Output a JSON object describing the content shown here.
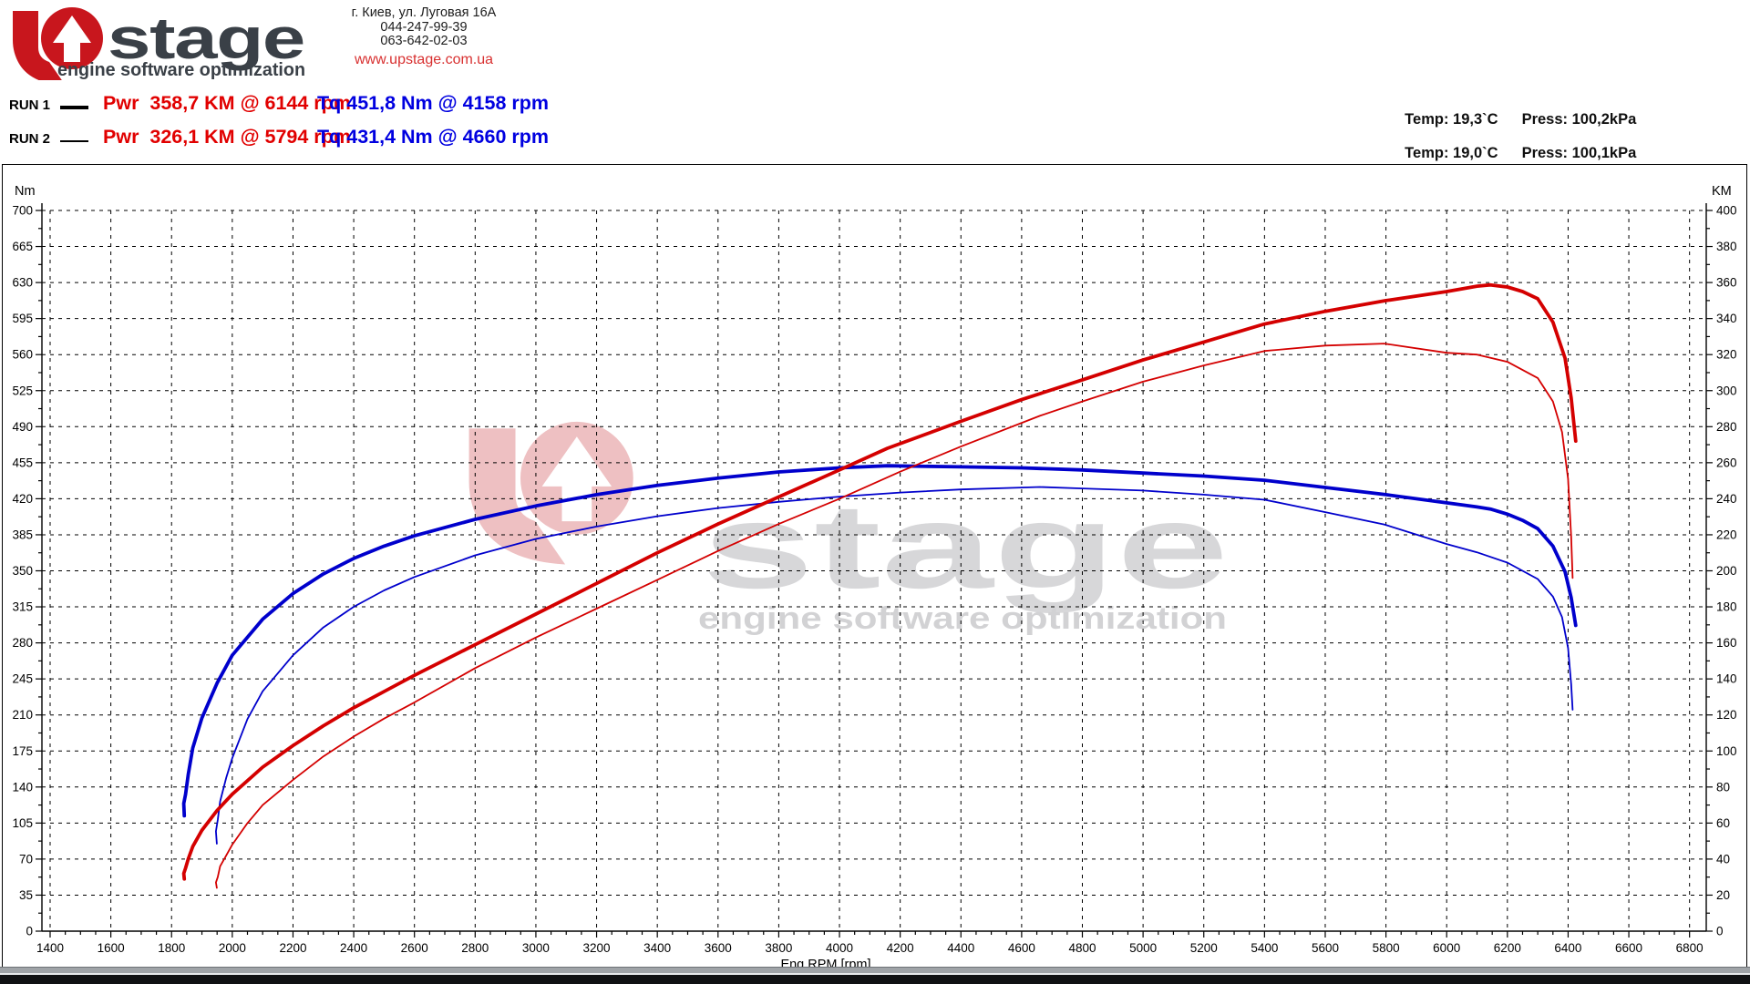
{
  "header": {
    "logo": {
      "brand_rest": "stage",
      "tagline": "engine software optimization",
      "red": "#c8161d",
      "dark": "#3a4047"
    },
    "address_lines": [
      "г. Киев, ул. Луговая 16А",
      "044-247-99-39",
      "063-642-02-03"
    ],
    "website": "www.upstage.com.ua",
    "runs": [
      {
        "label": "RUN 1",
        "power": "Pwr  358,7 KM @ 6144 rpm",
        "torque": "Tq 451,8 Nm @ 4158 rpm",
        "temp": "Temp: 19,3`C",
        "press": "Press: 100,2kPa"
      },
      {
        "label": "RUN 2",
        "power": "Pwr  326,1 KM @ 5794 rpm",
        "torque": "Tq 431,4 Nm @ 4660 rpm",
        "temp": "Temp: 19,0`C",
        "press": "Press: 100,1kPa"
      }
    ]
  },
  "chart_data": {
    "type": "line",
    "grid": "dashed",
    "x_axis": {
      "label": "Eng RPM [rpm]",
      "min": 1400,
      "max": 6800,
      "major_step": 200,
      "minor_step": 50
    },
    "y_left": {
      "label": "Nm",
      "min": 0,
      "max": 700,
      "major_step": 35
    },
    "y_right": {
      "label": "KM",
      "min": 0,
      "max": 400,
      "major_step": 20
    },
    "watermark": {
      "text": "stage",
      "tagline": "engine software optimization",
      "mark_color": "#eec0c2",
      "text_color": "#d7d7d9",
      "tagline_color": "#d2d2d4"
    },
    "series": [
      {
        "name": "RUN 1 Torque (Nm)",
        "axis": "left",
        "color": "#0000cc",
        "width": 3.8,
        "peak": "451,8 Nm @ 4158 rpm",
        "points": [
          [
            1842,
            112
          ],
          [
            1840,
            124
          ],
          [
            1846,
            133
          ],
          [
            1855,
            152
          ],
          [
            1870,
            178
          ],
          [
            1900,
            207
          ],
          [
            1950,
            241
          ],
          [
            2000,
            268
          ],
          [
            2100,
            303
          ],
          [
            2200,
            328
          ],
          [
            2300,
            347
          ],
          [
            2400,
            362
          ],
          [
            2500,
            374
          ],
          [
            2600,
            384
          ],
          [
            2800,
            400
          ],
          [
            3000,
            413
          ],
          [
            3200,
            424
          ],
          [
            3400,
            433
          ],
          [
            3600,
            440
          ],
          [
            3800,
            446
          ],
          [
            4000,
            450
          ],
          [
            4158,
            452
          ],
          [
            4400,
            451
          ],
          [
            4600,
            450
          ],
          [
            4800,
            448
          ],
          [
            5000,
            445
          ],
          [
            5200,
            442
          ],
          [
            5400,
            438
          ],
          [
            5600,
            431
          ],
          [
            5800,
            424
          ],
          [
            6000,
            416
          ],
          [
            6100,
            412
          ],
          [
            6144,
            410
          ],
          [
            6200,
            405
          ],
          [
            6250,
            399
          ],
          [
            6300,
            391
          ],
          [
            6350,
            374
          ],
          [
            6390,
            349
          ],
          [
            6410,
            324
          ],
          [
            6425,
            297
          ]
        ]
      },
      {
        "name": "RUN 2 Torque (Nm)",
        "axis": "left",
        "color": "#0000cc",
        "width": 1.8,
        "peak": "431,4 Nm @ 4660 rpm",
        "points": [
          [
            1949,
            85
          ],
          [
            1946,
            97
          ],
          [
            1952,
            108
          ],
          [
            1960,
            126
          ],
          [
            1980,
            149
          ],
          [
            2000,
            168
          ],
          [
            2050,
            206
          ],
          [
            2100,
            233
          ],
          [
            2200,
            268
          ],
          [
            2300,
            295
          ],
          [
            2400,
            315
          ],
          [
            2500,
            331
          ],
          [
            2600,
            344
          ],
          [
            2800,
            365
          ],
          [
            3000,
            381
          ],
          [
            3200,
            393
          ],
          [
            3400,
            403
          ],
          [
            3600,
            411
          ],
          [
            3800,
            417
          ],
          [
            4000,
            422
          ],
          [
            4200,
            426
          ],
          [
            4400,
            429
          ],
          [
            4660,
            431.4
          ],
          [
            4800,
            430
          ],
          [
            5000,
            428
          ],
          [
            5200,
            424
          ],
          [
            5400,
            419
          ],
          [
            5600,
            407
          ],
          [
            5794,
            395
          ],
          [
            6000,
            376
          ],
          [
            6100,
            368
          ],
          [
            6200,
            358
          ],
          [
            6300,
            342
          ],
          [
            6350,
            325
          ],
          [
            6380,
            305
          ],
          [
            6400,
            275
          ],
          [
            6410,
            240
          ],
          [
            6415,
            215
          ]
        ]
      },
      {
        "name": "RUN 1 Power (KM)",
        "axis": "right",
        "color": "#d40000",
        "width": 3.8,
        "peak": "358,7 KM @ 6144 rpm",
        "points": [
          [
            1842,
            29
          ],
          [
            1840,
            32
          ],
          [
            1846,
            35
          ],
          [
            1855,
            40
          ],
          [
            1870,
            47
          ],
          [
            1900,
            56
          ],
          [
            1950,
            67
          ],
          [
            2000,
            76
          ],
          [
            2100,
            91
          ],
          [
            2200,
            103
          ],
          [
            2300,
            114
          ],
          [
            2400,
            124
          ],
          [
            2500,
            133
          ],
          [
            2600,
            142
          ],
          [
            2800,
            159
          ],
          [
            3000,
            176
          ],
          [
            3200,
            193
          ],
          [
            3400,
            210
          ],
          [
            3600,
            226
          ],
          [
            3800,
            241
          ],
          [
            4000,
            256
          ],
          [
            4158,
            268
          ],
          [
            4400,
            283
          ],
          [
            4600,
            295
          ],
          [
            4800,
            306
          ],
          [
            5000,
            317
          ],
          [
            5200,
            327
          ],
          [
            5400,
            337
          ],
          [
            5600,
            344
          ],
          [
            5800,
            350
          ],
          [
            6000,
            355
          ],
          [
            6100,
            358
          ],
          [
            6144,
            358.7
          ],
          [
            6200,
            357.5
          ],
          [
            6250,
            355
          ],
          [
            6300,
            351
          ],
          [
            6350,
            338
          ],
          [
            6390,
            318
          ],
          [
            6410,
            296
          ],
          [
            6425,
            272
          ]
        ]
      },
      {
        "name": "RUN 2 Power (KM)",
        "axis": "right",
        "color": "#d40000",
        "width": 1.8,
        "peak": "326,1 KM @ 5794 rpm",
        "points": [
          [
            1949,
            24
          ],
          [
            1946,
            27
          ],
          [
            1952,
            30
          ],
          [
            1960,
            36
          ],
          [
            1980,
            42
          ],
          [
            2000,
            48
          ],
          [
            2050,
            60
          ],
          [
            2100,
            70
          ],
          [
            2200,
            84
          ],
          [
            2300,
            97
          ],
          [
            2400,
            108
          ],
          [
            2500,
            118
          ],
          [
            2600,
            127
          ],
          [
            2800,
            146
          ],
          [
            3000,
            163
          ],
          [
            3200,
            179
          ],
          [
            3400,
            195
          ],
          [
            3600,
            211
          ],
          [
            3800,
            226
          ],
          [
            4000,
            240
          ],
          [
            4200,
            255
          ],
          [
            4400,
            269
          ],
          [
            4660,
            286
          ],
          [
            4800,
            294
          ],
          [
            5000,
            305
          ],
          [
            5200,
            314
          ],
          [
            5400,
            322
          ],
          [
            5600,
            325
          ],
          [
            5794,
            326.1
          ],
          [
            6000,
            321
          ],
          [
            6100,
            320
          ],
          [
            6200,
            316
          ],
          [
            6300,
            307
          ],
          [
            6350,
            294
          ],
          [
            6380,
            277
          ],
          [
            6400,
            251
          ],
          [
            6410,
            219
          ],
          [
            6415,
            196
          ]
        ]
      }
    ]
  }
}
